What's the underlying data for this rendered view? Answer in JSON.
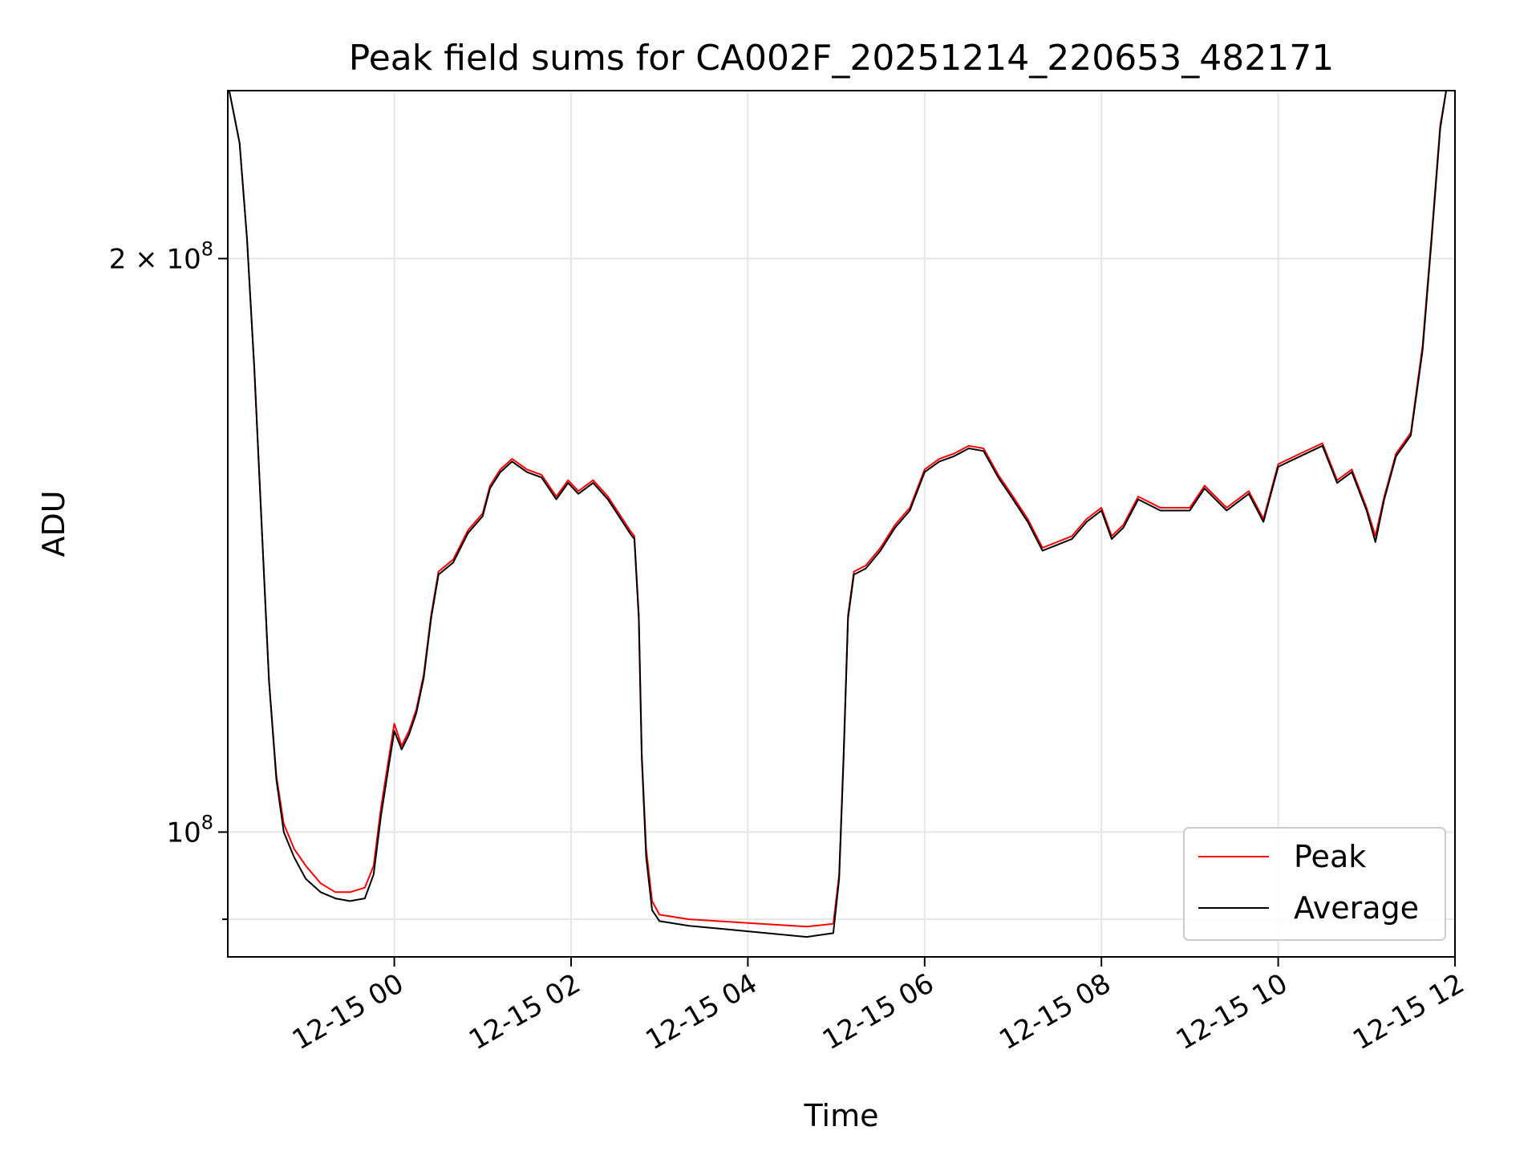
{
  "chart_data": {
    "type": "line",
    "title": "Peak field sums for CA002F_20251214_220653_482171",
    "xlabel": "Time",
    "ylabel": "ADU",
    "yscale": "log",
    "ylim": [
      86000000,
      245000000
    ],
    "xlim": [
      "2025-12-14 22:07",
      "2025-12-15 12:00"
    ],
    "grid": true,
    "legend_position": "lower-right",
    "x_ticks": [
      {
        "label": "12-15 00",
        "value": "2025-12-15 00:00"
      },
      {
        "label": "12-15 02",
        "value": "2025-12-15 02:00"
      },
      {
        "label": "12-15 04",
        "value": "2025-12-15 04:00"
      },
      {
        "label": "12-15 06",
        "value": "2025-12-15 06:00"
      },
      {
        "label": "12-15 08",
        "value": "2025-12-15 08:00"
      },
      {
        "label": "12-15 10",
        "value": "2025-12-15 10:00"
      },
      {
        "label": "12-15 12",
        "value": "2025-12-15 12:00"
      }
    ],
    "y_ticks": [
      {
        "label": "10",
        "exp": "8",
        "value": 100000000,
        "major": true
      },
      {
        "label": "2 × 10",
        "exp": "8",
        "value": 200000000,
        "major": true
      },
      {
        "label": "",
        "exp": "",
        "value": 90000000,
        "major": false
      }
    ],
    "series": [
      {
        "name": "Peak",
        "color": "#ff0000",
        "points": [
          [
            "2025-12-14 22:08",
            245000000
          ],
          [
            "2025-12-14 22:15",
            230000000
          ],
          [
            "2025-12-14 22:20",
            205000000
          ],
          [
            "2025-12-14 22:25",
            175000000
          ],
          [
            "2025-12-14 22:30",
            145000000
          ],
          [
            "2025-12-14 22:35",
            120000000
          ],
          [
            "2025-12-14 22:40",
            107000000
          ],
          [
            "2025-12-14 22:45",
            101000000
          ],
          [
            "2025-12-14 22:52",
            98000000
          ],
          [
            "2025-12-14 23:00",
            96000000
          ],
          [
            "2025-12-14 23:10",
            94000000
          ],
          [
            "2025-12-14 23:20",
            93000000
          ],
          [
            "2025-12-14 23:30",
            93000000
          ],
          [
            "2025-12-14 23:40",
            93500000
          ],
          [
            "2025-12-14 23:46",
            96000000
          ],
          [
            "2025-12-14 23:51",
            103000000
          ],
          [
            "2025-12-14 23:56",
            109000000
          ],
          [
            "2025-12-15 00:00",
            114000000
          ],
          [
            "2025-12-15 00:05",
            111000000
          ],
          [
            "2025-12-15 00:10",
            113000000
          ],
          [
            "2025-12-15 00:15",
            116000000
          ],
          [
            "2025-12-15 00:20",
            121000000
          ],
          [
            "2025-12-15 00:25",
            130000000
          ],
          [
            "2025-12-15 00:30",
            137000000
          ],
          [
            "2025-12-15 00:40",
            139000000
          ],
          [
            "2025-12-15 00:50",
            144000000
          ],
          [
            "2025-12-15 01:00",
            147000000
          ],
          [
            "2025-12-15 01:05",
            152000000
          ],
          [
            "2025-12-15 01:12",
            155000000
          ],
          [
            "2025-12-15 01:20",
            157000000
          ],
          [
            "2025-12-15 01:30",
            155000000
          ],
          [
            "2025-12-15 01:40",
            154000000
          ],
          [
            "2025-12-15 01:50",
            150000000
          ],
          [
            "2025-12-15 01:58",
            153000000
          ],
          [
            "2025-12-15 02:05",
            151000000
          ],
          [
            "2025-12-15 02:15",
            153000000
          ],
          [
            "2025-12-15 02:25",
            150000000
          ],
          [
            "2025-12-15 02:35",
            146000000
          ],
          [
            "2025-12-15 02:40",
            144000000
          ],
          [
            "2025-12-15 02:43",
            143000000
          ],
          [
            "2025-12-15 02:46",
            130000000
          ],
          [
            "2025-12-15 02:48",
            110000000
          ],
          [
            "2025-12-15 02:51",
            98000000
          ],
          [
            "2025-12-15 02:55",
            92000000
          ],
          [
            "2025-12-15 03:00",
            90500000
          ],
          [
            "2025-12-15 03:20",
            90000000
          ],
          [
            "2025-12-15 03:40",
            89800000
          ],
          [
            "2025-12-15 04:00",
            89600000
          ],
          [
            "2025-12-15 04:20",
            89400000
          ],
          [
            "2025-12-15 04:40",
            89200000
          ],
          [
            "2025-12-15 04:58",
            89500000
          ],
          [
            "2025-12-15 05:02",
            95000000
          ],
          [
            "2025-12-15 05:05",
            110000000
          ],
          [
            "2025-12-15 05:08",
            130000000
          ],
          [
            "2025-12-15 05:12",
            137000000
          ],
          [
            "2025-12-15 05:20",
            138000000
          ],
          [
            "2025-12-15 05:30",
            141000000
          ],
          [
            "2025-12-15 05:40",
            145000000
          ],
          [
            "2025-12-15 05:50",
            148000000
          ],
          [
            "2025-12-15 06:00",
            155000000
          ],
          [
            "2025-12-15 06:10",
            157000000
          ],
          [
            "2025-12-15 06:20",
            158000000
          ],
          [
            "2025-12-15 06:30",
            159500000
          ],
          [
            "2025-12-15 06:40",
            159000000
          ],
          [
            "2025-12-15 06:50",
            154000000
          ],
          [
            "2025-12-15 07:00",
            150000000
          ],
          [
            "2025-12-15 07:10",
            146000000
          ],
          [
            "2025-12-15 07:20",
            141000000
          ],
          [
            "2025-12-15 07:30",
            142000000
          ],
          [
            "2025-12-15 07:40",
            143000000
          ],
          [
            "2025-12-15 07:50",
            146000000
          ],
          [
            "2025-12-15 08:00",
            148000000
          ],
          [
            "2025-12-15 08:07",
            143000000
          ],
          [
            "2025-12-15 08:15",
            145000000
          ],
          [
            "2025-12-15 08:25",
            150000000
          ],
          [
            "2025-12-15 08:40",
            148000000
          ],
          [
            "2025-12-15 09:00",
            148000000
          ],
          [
            "2025-12-15 09:10",
            152000000
          ],
          [
            "2025-12-15 09:25",
            148000000
          ],
          [
            "2025-12-15 09:40",
            151000000
          ],
          [
            "2025-12-15 09:50",
            146000000
          ],
          [
            "2025-12-15 10:00",
            156000000
          ],
          [
            "2025-12-15 10:15",
            158000000
          ],
          [
            "2025-12-15 10:30",
            160000000
          ],
          [
            "2025-12-15 10:40",
            153000000
          ],
          [
            "2025-12-15 10:50",
            155000000
          ],
          [
            "2025-12-15 11:00",
            148000000
          ],
          [
            "2025-12-15 11:06",
            143000000
          ],
          [
            "2025-12-15 11:12",
            150000000
          ],
          [
            "2025-12-15 11:20",
            158000000
          ],
          [
            "2025-12-15 11:30",
            162000000
          ],
          [
            "2025-12-15 11:38",
            180000000
          ],
          [
            "2025-12-15 11:44",
            205000000
          ],
          [
            "2025-12-15 11:50",
            235000000
          ],
          [
            "2025-12-15 11:54",
            245000000
          ]
        ]
      },
      {
        "name": "Average",
        "color": "#000000",
        "points": [
          [
            "2025-12-14 22:08",
            245000000
          ],
          [
            "2025-12-14 22:15",
            230000000
          ],
          [
            "2025-12-14 22:20",
            205000000
          ],
          [
            "2025-12-14 22:25",
            175000000
          ],
          [
            "2025-12-14 22:30",
            145000000
          ],
          [
            "2025-12-14 22:35",
            120000000
          ],
          [
            "2025-12-14 22:40",
            106500000
          ],
          [
            "2025-12-14 22:45",
            100000000
          ],
          [
            "2025-12-14 22:52",
            97000000
          ],
          [
            "2025-12-14 23:00",
            94500000
          ],
          [
            "2025-12-14 23:10",
            93000000
          ],
          [
            "2025-12-14 23:20",
            92300000
          ],
          [
            "2025-12-14 23:30",
            92000000
          ],
          [
            "2025-12-14 23:40",
            92300000
          ],
          [
            "2025-12-14 23:46",
            95000000
          ],
          [
            "2025-12-14 23:51",
            102000000
          ],
          [
            "2025-12-14 23:56",
            108000000
          ],
          [
            "2025-12-15 00:00",
            113000000
          ],
          [
            "2025-12-15 00:05",
            110500000
          ],
          [
            "2025-12-15 00:10",
            112500000
          ],
          [
            "2025-12-15 00:15",
            115500000
          ],
          [
            "2025-12-15 00:20",
            120500000
          ],
          [
            "2025-12-15 00:25",
            129500000
          ],
          [
            "2025-12-15 00:30",
            136500000
          ],
          [
            "2025-12-15 00:40",
            138500000
          ],
          [
            "2025-12-15 00:50",
            143500000
          ],
          [
            "2025-12-15 01:00",
            146500000
          ],
          [
            "2025-12-15 01:05",
            151500000
          ],
          [
            "2025-12-15 01:12",
            154500000
          ],
          [
            "2025-12-15 01:20",
            156500000
          ],
          [
            "2025-12-15 01:30",
            154500000
          ],
          [
            "2025-12-15 01:40",
            153500000
          ],
          [
            "2025-12-15 01:50",
            149500000
          ],
          [
            "2025-12-15 01:58",
            152500000
          ],
          [
            "2025-12-15 02:05",
            150500000
          ],
          [
            "2025-12-15 02:15",
            152500000
          ],
          [
            "2025-12-15 02:25",
            149500000
          ],
          [
            "2025-12-15 02:35",
            145500000
          ],
          [
            "2025-12-15 02:40",
            143500000
          ],
          [
            "2025-12-15 02:43",
            142500000
          ],
          [
            "2025-12-15 02:46",
            129500000
          ],
          [
            "2025-12-15 02:48",
            109500000
          ],
          [
            "2025-12-15 02:51",
            97000000
          ],
          [
            "2025-12-15 02:55",
            91000000
          ],
          [
            "2025-12-15 03:00",
            89800000
          ],
          [
            "2025-12-15 03:20",
            89300000
          ],
          [
            "2025-12-15 03:40",
            89000000
          ],
          [
            "2025-12-15 04:00",
            88700000
          ],
          [
            "2025-12-15 04:20",
            88400000
          ],
          [
            "2025-12-15 04:40",
            88100000
          ],
          [
            "2025-12-15 04:58",
            88500000
          ],
          [
            "2025-12-15 05:02",
            94500000
          ],
          [
            "2025-12-15 05:05",
            109500000
          ],
          [
            "2025-12-15 05:08",
            129500000
          ],
          [
            "2025-12-15 05:12",
            136500000
          ],
          [
            "2025-12-15 05:20",
            137500000
          ],
          [
            "2025-12-15 05:30",
            140500000
          ],
          [
            "2025-12-15 05:40",
            144500000
          ],
          [
            "2025-12-15 05:50",
            147500000
          ],
          [
            "2025-12-15 06:00",
            154500000
          ],
          [
            "2025-12-15 06:10",
            156500000
          ],
          [
            "2025-12-15 06:20",
            157500000
          ],
          [
            "2025-12-15 06:30",
            159000000
          ],
          [
            "2025-12-15 06:40",
            158500000
          ],
          [
            "2025-12-15 06:50",
            153500000
          ],
          [
            "2025-12-15 07:00",
            149500000
          ],
          [
            "2025-12-15 07:10",
            145500000
          ],
          [
            "2025-12-15 07:20",
            140500000
          ],
          [
            "2025-12-15 07:30",
            141500000
          ],
          [
            "2025-12-15 07:40",
            142500000
          ],
          [
            "2025-12-15 07:50",
            145500000
          ],
          [
            "2025-12-15 08:00",
            147500000
          ],
          [
            "2025-12-15 08:07",
            142500000
          ],
          [
            "2025-12-15 08:15",
            144500000
          ],
          [
            "2025-12-15 08:25",
            149500000
          ],
          [
            "2025-12-15 08:40",
            147500000
          ],
          [
            "2025-12-15 09:00",
            147500000
          ],
          [
            "2025-12-15 09:10",
            151500000
          ],
          [
            "2025-12-15 09:25",
            147500000
          ],
          [
            "2025-12-15 09:40",
            150500000
          ],
          [
            "2025-12-15 09:50",
            145500000
          ],
          [
            "2025-12-15 10:00",
            155500000
          ],
          [
            "2025-12-15 10:15",
            157500000
          ],
          [
            "2025-12-15 10:30",
            159500000
          ],
          [
            "2025-12-15 10:40",
            152500000
          ],
          [
            "2025-12-15 10:50",
            154500000
          ],
          [
            "2025-12-15 11:00",
            147500000
          ],
          [
            "2025-12-15 11:06",
            142000000
          ],
          [
            "2025-12-15 11:12",
            149500000
          ],
          [
            "2025-12-15 11:20",
            157500000
          ],
          [
            "2025-12-15 11:30",
            161500000
          ],
          [
            "2025-12-15 11:38",
            179000000
          ],
          [
            "2025-12-15 11:44",
            204000000
          ],
          [
            "2025-12-15 11:50",
            234000000
          ],
          [
            "2025-12-15 11:54",
            245000000
          ]
        ]
      }
    ]
  }
}
